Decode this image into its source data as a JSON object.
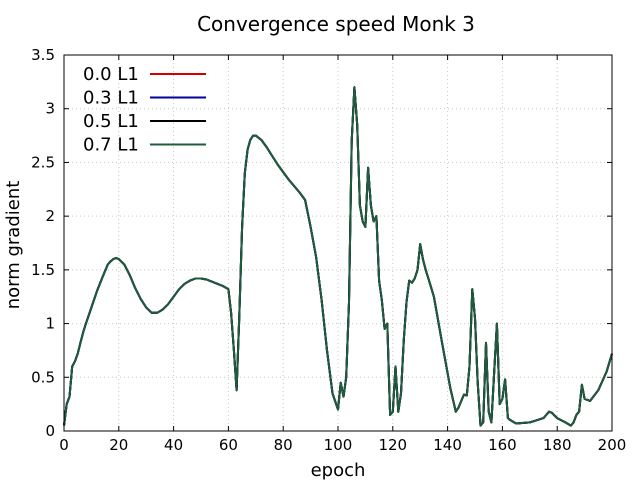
{
  "chart_data": {
    "type": "line",
    "title": "Convergence speed Monk 3",
    "xlabel": "epoch",
    "ylabel": "norm gradient",
    "xlim": [
      0,
      200
    ],
    "ylim": [
      0,
      3.5
    ],
    "xticks": [
      0,
      20,
      40,
      60,
      80,
      100,
      120,
      140,
      160,
      180,
      200
    ],
    "xtick_labels": [
      "0",
      "20",
      "40",
      "60",
      "80",
      "100",
      "120",
      "140",
      "160",
      "180",
      "200"
    ],
    "yticks": [
      0,
      0.5,
      1,
      1.5,
      2,
      2.5,
      3,
      3.5
    ],
    "ytick_labels": [
      "0",
      "0.5",
      "1",
      "1.5",
      "2",
      "2.5",
      "3",
      "3.5"
    ],
    "grid": true,
    "legend_position": "top-left",
    "x": [
      0,
      1,
      2,
      3,
      4,
      5,
      6,
      7,
      8,
      10,
      12,
      14,
      16,
      17,
      18,
      19,
      20,
      22,
      24,
      26,
      28,
      30,
      32,
      34,
      36,
      38,
      40,
      42,
      44,
      46,
      48,
      50,
      52,
      54,
      56,
      58,
      60,
      61,
      62,
      63,
      64,
      65,
      66,
      67,
      68,
      69,
      70,
      72,
      74,
      76,
      78,
      80,
      82,
      84,
      86,
      88,
      90,
      92,
      94,
      96,
      98,
      100,
      101,
      102,
      103,
      104,
      105,
      106,
      107,
      108,
      109,
      110,
      111,
      112,
      113,
      114,
      115,
      116,
      117,
      118,
      119,
      120,
      121,
      122,
      123,
      124,
      125,
      126,
      127,
      128,
      129,
      130,
      131,
      132,
      133,
      135,
      138,
      141,
      143,
      144,
      145,
      146,
      147,
      148,
      149,
      150,
      151,
      152,
      153,
      154,
      155,
      156,
      157,
      158,
      159,
      160,
      161,
      162,
      163,
      165,
      170,
      175,
      177,
      178,
      180,
      183,
      185,
      186,
      187,
      188,
      189,
      190,
      192,
      195,
      198,
      200
    ],
    "series": [
      {
        "name": "0.0 L1",
        "color": "#d40000",
        "values": [
          0.05,
          0.25,
          0.32,
          0.6,
          0.65,
          0.72,
          0.82,
          0.92,
          1.0,
          1.15,
          1.3,
          1.43,
          1.55,
          1.58,
          1.6,
          1.61,
          1.6,
          1.55,
          1.45,
          1.33,
          1.23,
          1.15,
          1.1,
          1.1,
          1.13,
          1.18,
          1.25,
          1.32,
          1.37,
          1.4,
          1.42,
          1.42,
          1.41,
          1.39,
          1.37,
          1.35,
          1.32,
          1.1,
          0.75,
          0.38,
          1.1,
          1.9,
          2.4,
          2.62,
          2.71,
          2.75,
          2.75,
          2.71,
          2.64,
          2.56,
          2.48,
          2.41,
          2.34,
          2.28,
          2.22,
          2.15,
          1.9,
          1.62,
          1.22,
          0.75,
          0.35,
          0.2,
          0.45,
          0.32,
          0.5,
          1.2,
          2.7,
          3.2,
          2.85,
          2.1,
          1.95,
          1.9,
          2.45,
          2.1,
          1.95,
          2.0,
          1.4,
          1.22,
          0.95,
          1.0,
          0.15,
          0.18,
          0.6,
          0.18,
          0.35,
          0.85,
          1.2,
          1.4,
          1.38,
          1.42,
          1.5,
          1.74,
          1.6,
          1.5,
          1.42,
          1.25,
          0.82,
          0.4,
          0.18,
          0.22,
          0.28,
          0.34,
          0.33,
          0.6,
          1.32,
          1.05,
          0.45,
          0.05,
          0.08,
          0.82,
          0.18,
          0.08,
          0.55,
          1.0,
          0.25,
          0.3,
          0.48,
          0.12,
          0.1,
          0.07,
          0.08,
          0.12,
          0.18,
          0.17,
          0.12,
          0.08,
          0.05,
          0.08,
          0.15,
          0.18,
          0.43,
          0.3,
          0.28,
          0.38,
          0.55,
          0.72
        ]
      },
      {
        "name": "0.3 L1",
        "color": "#00009f",
        "values": [
          0.05,
          0.25,
          0.32,
          0.6,
          0.65,
          0.72,
          0.82,
          0.92,
          1.0,
          1.15,
          1.3,
          1.43,
          1.55,
          1.58,
          1.6,
          1.61,
          1.6,
          1.55,
          1.45,
          1.33,
          1.23,
          1.15,
          1.1,
          1.1,
          1.13,
          1.18,
          1.25,
          1.32,
          1.37,
          1.4,
          1.42,
          1.42,
          1.41,
          1.39,
          1.37,
          1.35,
          1.32,
          1.1,
          0.75,
          0.38,
          1.1,
          1.9,
          2.4,
          2.62,
          2.71,
          2.75,
          2.75,
          2.71,
          2.64,
          2.56,
          2.48,
          2.41,
          2.34,
          2.28,
          2.22,
          2.15,
          1.9,
          1.62,
          1.22,
          0.75,
          0.35,
          0.2,
          0.45,
          0.32,
          0.5,
          1.2,
          2.7,
          3.2,
          2.85,
          2.1,
          1.95,
          1.9,
          2.45,
          2.1,
          1.95,
          2.0,
          1.4,
          1.22,
          0.95,
          1.0,
          0.15,
          0.18,
          0.6,
          0.18,
          0.35,
          0.85,
          1.2,
          1.4,
          1.38,
          1.42,
          1.5,
          1.74,
          1.6,
          1.5,
          1.42,
          1.25,
          0.82,
          0.4,
          0.18,
          0.22,
          0.28,
          0.34,
          0.33,
          0.6,
          1.32,
          1.05,
          0.45,
          0.05,
          0.08,
          0.82,
          0.18,
          0.08,
          0.55,
          1.0,
          0.25,
          0.3,
          0.48,
          0.12,
          0.1,
          0.07,
          0.08,
          0.12,
          0.18,
          0.17,
          0.12,
          0.08,
          0.05,
          0.08,
          0.15,
          0.18,
          0.43,
          0.3,
          0.28,
          0.38,
          0.55,
          0.72
        ]
      },
      {
        "name": "0.5 L1",
        "color": "#000000",
        "values": [
          0.05,
          0.25,
          0.32,
          0.6,
          0.65,
          0.72,
          0.82,
          0.92,
          1.0,
          1.15,
          1.3,
          1.43,
          1.55,
          1.58,
          1.6,
          1.61,
          1.6,
          1.55,
          1.45,
          1.33,
          1.23,
          1.15,
          1.1,
          1.1,
          1.13,
          1.18,
          1.25,
          1.32,
          1.37,
          1.4,
          1.42,
          1.42,
          1.41,
          1.39,
          1.37,
          1.35,
          1.32,
          1.1,
          0.75,
          0.38,
          1.1,
          1.9,
          2.4,
          2.62,
          2.71,
          2.75,
          2.75,
          2.71,
          2.64,
          2.56,
          2.48,
          2.41,
          2.34,
          2.28,
          2.22,
          2.15,
          1.9,
          1.62,
          1.22,
          0.75,
          0.35,
          0.2,
          0.45,
          0.32,
          0.5,
          1.2,
          2.7,
          3.2,
          2.85,
          2.1,
          1.95,
          1.9,
          2.45,
          2.1,
          1.95,
          2.0,
          1.4,
          1.22,
          0.95,
          1.0,
          0.15,
          0.18,
          0.6,
          0.18,
          0.35,
          0.85,
          1.2,
          1.4,
          1.38,
          1.42,
          1.5,
          1.74,
          1.6,
          1.5,
          1.42,
          1.25,
          0.82,
          0.4,
          0.18,
          0.22,
          0.28,
          0.34,
          0.33,
          0.6,
          1.32,
          1.05,
          0.45,
          0.05,
          0.08,
          0.82,
          0.18,
          0.08,
          0.55,
          1.0,
          0.25,
          0.3,
          0.48,
          0.12,
          0.1,
          0.07,
          0.08,
          0.12,
          0.18,
          0.17,
          0.12,
          0.08,
          0.05,
          0.08,
          0.15,
          0.18,
          0.43,
          0.3,
          0.28,
          0.38,
          0.55,
          0.72
        ]
      },
      {
        "name": "0.7 L1",
        "color": "#1d5c3c",
        "values": [
          0.05,
          0.25,
          0.32,
          0.6,
          0.65,
          0.72,
          0.82,
          0.92,
          1.0,
          1.15,
          1.3,
          1.43,
          1.55,
          1.58,
          1.6,
          1.61,
          1.6,
          1.55,
          1.45,
          1.33,
          1.23,
          1.15,
          1.1,
          1.1,
          1.13,
          1.18,
          1.25,
          1.32,
          1.37,
          1.4,
          1.42,
          1.42,
          1.41,
          1.39,
          1.37,
          1.35,
          1.32,
          1.1,
          0.75,
          0.38,
          1.1,
          1.9,
          2.4,
          2.62,
          2.71,
          2.75,
          2.75,
          2.71,
          2.64,
          2.56,
          2.48,
          2.41,
          2.34,
          2.28,
          2.22,
          2.15,
          1.9,
          1.62,
          1.22,
          0.75,
          0.35,
          0.2,
          0.45,
          0.32,
          0.5,
          1.2,
          2.7,
          3.2,
          2.85,
          2.1,
          1.95,
          1.9,
          2.45,
          2.1,
          1.95,
          2.0,
          1.4,
          1.22,
          0.95,
          1.0,
          0.15,
          0.18,
          0.6,
          0.18,
          0.35,
          0.85,
          1.2,
          1.4,
          1.38,
          1.42,
          1.5,
          1.74,
          1.6,
          1.5,
          1.42,
          1.25,
          0.82,
          0.4,
          0.18,
          0.22,
          0.28,
          0.34,
          0.33,
          0.6,
          1.32,
          1.05,
          0.45,
          0.05,
          0.08,
          0.82,
          0.18,
          0.08,
          0.55,
          1.0,
          0.25,
          0.3,
          0.48,
          0.12,
          0.1,
          0.07,
          0.08,
          0.12,
          0.18,
          0.17,
          0.12,
          0.08,
          0.05,
          0.08,
          0.15,
          0.18,
          0.43,
          0.3,
          0.28,
          0.38,
          0.55,
          0.72
        ]
      }
    ]
  }
}
